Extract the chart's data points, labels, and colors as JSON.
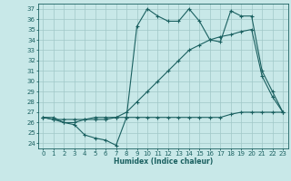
{
  "title": "",
  "xlabel": "Humidex (Indice chaleur)",
  "ylabel": "",
  "bg_color": "#c8e8e8",
  "grid_color": "#a0c8c8",
  "line_color": "#1a6060",
  "xlim": [
    -0.5,
    23.5
  ],
  "ylim": [
    23.5,
    37.5
  ],
  "xticks": [
    0,
    1,
    2,
    3,
    4,
    5,
    6,
    7,
    8,
    9,
    10,
    11,
    12,
    13,
    14,
    15,
    16,
    17,
    18,
    19,
    20,
    21,
    22,
    23
  ],
  "yticks": [
    24,
    25,
    26,
    27,
    28,
    29,
    30,
    31,
    32,
    33,
    34,
    35,
    36,
    37
  ],
  "line1_x": [
    0,
    1,
    2,
    3,
    4,
    5,
    6,
    7,
    8,
    9,
    10,
    11,
    12,
    13,
    14,
    15,
    16,
    17,
    18,
    19,
    20,
    21,
    22,
    23
  ],
  "line1_y": [
    26.5,
    26.5,
    26.0,
    25.8,
    24.8,
    24.5,
    24.3,
    23.8,
    26.5,
    35.3,
    37.0,
    36.3,
    35.8,
    35.8,
    37.0,
    35.8,
    34.0,
    33.8,
    36.8,
    36.3,
    36.3,
    31.0,
    29.0,
    27.0
  ],
  "line2_x": [
    0,
    1,
    2,
    3,
    4,
    5,
    6,
    7,
    8,
    9,
    10,
    11,
    12,
    13,
    14,
    15,
    16,
    17,
    18,
    19,
    20,
    21,
    22,
    23
  ],
  "line2_y": [
    26.5,
    26.3,
    26.3,
    26.3,
    26.3,
    26.3,
    26.3,
    26.5,
    26.5,
    26.5,
    26.5,
    26.5,
    26.5,
    26.5,
    26.5,
    26.5,
    26.5,
    26.5,
    26.8,
    27.0,
    27.0,
    27.0,
    27.0,
    27.0
  ],
  "line3_x": [
    0,
    1,
    2,
    3,
    4,
    5,
    6,
    7,
    8,
    9,
    10,
    11,
    12,
    13,
    14,
    15,
    16,
    17,
    18,
    19,
    20,
    21,
    22,
    23
  ],
  "line3_y": [
    26.5,
    26.3,
    26.0,
    26.0,
    26.3,
    26.5,
    26.5,
    26.5,
    27.0,
    28.0,
    29.0,
    30.0,
    31.0,
    32.0,
    33.0,
    33.5,
    34.0,
    34.3,
    34.5,
    34.8,
    35.0,
    30.5,
    28.5,
    27.0
  ],
  "xlabel_fontsize": 5.5,
  "tick_fontsize": 5.0
}
